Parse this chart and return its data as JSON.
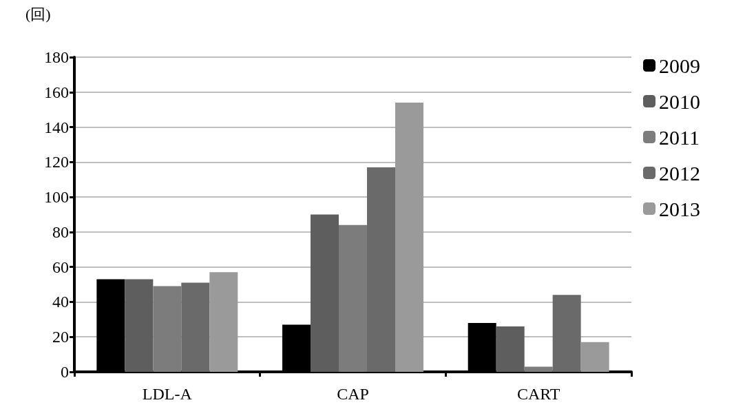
{
  "chart_data": {
    "type": "bar",
    "title": "(回)",
    "categories": [
      "LDL-A",
      "CAP",
      "CART"
    ],
    "series": [
      {
        "name": "2009",
        "color": "#000000",
        "values": [
          53,
          27,
          28
        ]
      },
      {
        "name": "2010",
        "color": "#5e5e5e",
        "values": [
          53,
          90,
          26
        ]
      },
      {
        "name": "2011",
        "color": "#7c7c7c",
        "values": [
          49,
          84,
          3
        ]
      },
      {
        "name": "2012",
        "color": "#6a6a6a",
        "values": [
          51,
          117,
          44
        ]
      },
      {
        "name": "2013",
        "color": "#9a9a9a",
        "values": [
          57,
          154,
          17
        ]
      }
    ],
    "ylim": [
      0,
      180
    ],
    "yticks": [
      0,
      20,
      40,
      60,
      80,
      100,
      120,
      140,
      160,
      180
    ],
    "grid": "y",
    "legend": "right"
  }
}
